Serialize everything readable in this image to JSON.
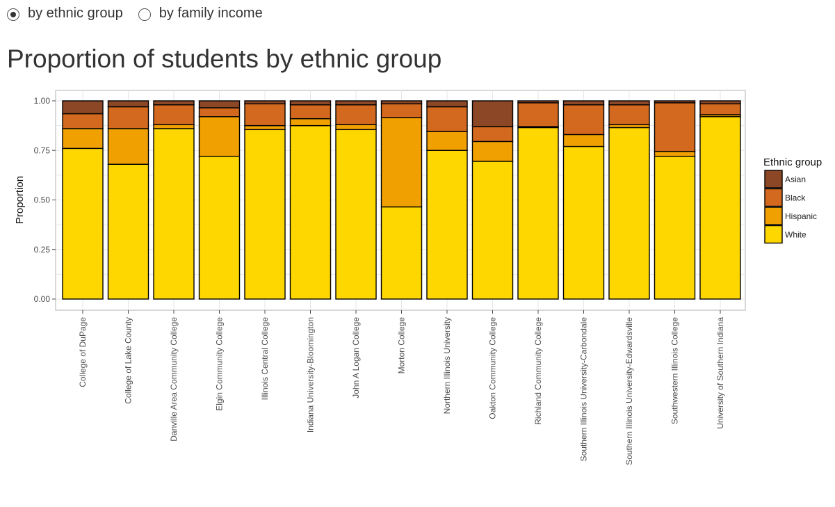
{
  "controls": {
    "options": [
      {
        "label": "by ethnic group",
        "selected": true
      },
      {
        "label": "by family income",
        "selected": false
      }
    ]
  },
  "page": {
    "title": "Proportion of students by ethnic group"
  },
  "chart_data": {
    "type": "bar",
    "stacked": true,
    "ylabel": "Proportion",
    "ylim": [
      0,
      1
    ],
    "yticks": [
      "0.00",
      "0.25",
      "0.50",
      "0.75",
      "1.00"
    ],
    "grid": true,
    "legend": {
      "title": "Ethnic group",
      "position": "right"
    },
    "categories": [
      "College of DuPage",
      "College of Lake County",
      "Danville Area Community College",
      "Elgin Community College",
      "Illinois Central College",
      "Indiana University-Bloomington",
      "John A Logan College",
      "Morton College",
      "Northern Illinois University",
      "Oakton Community College",
      "Richland Community College",
      "Southern Illinois University-Carbondale",
      "Southern Illinois University-Edwardsville",
      "Southwestern Illinois College",
      "University of Southern Indiana"
    ],
    "series": [
      {
        "name": "White",
        "color": "#FFD700",
        "values": [
          0.76,
          0.68,
          0.86,
          0.72,
          0.855,
          0.875,
          0.855,
          0.465,
          0.75,
          0.695,
          0.865,
          0.77,
          0.865,
          0.72,
          0.92
        ]
      },
      {
        "name": "Hispanic",
        "color": "#F0A000",
        "values": [
          0.1,
          0.18,
          0.02,
          0.2,
          0.02,
          0.035,
          0.025,
          0.45,
          0.095,
          0.1,
          0.005,
          0.06,
          0.015,
          0.025,
          0.01
        ]
      },
      {
        "name": "Black",
        "color": "#D2691E",
        "values": [
          0.075,
          0.11,
          0.1,
          0.045,
          0.11,
          0.07,
          0.1,
          0.07,
          0.125,
          0.075,
          0.12,
          0.15,
          0.1,
          0.245,
          0.055
        ]
      },
      {
        "name": "Asian",
        "color": "#8B4726",
        "values": [
          0.065,
          0.03,
          0.02,
          0.035,
          0.015,
          0.02,
          0.02,
          0.015,
          0.03,
          0.13,
          0.01,
          0.02,
          0.02,
          0.01,
          0.015
        ]
      }
    ]
  }
}
